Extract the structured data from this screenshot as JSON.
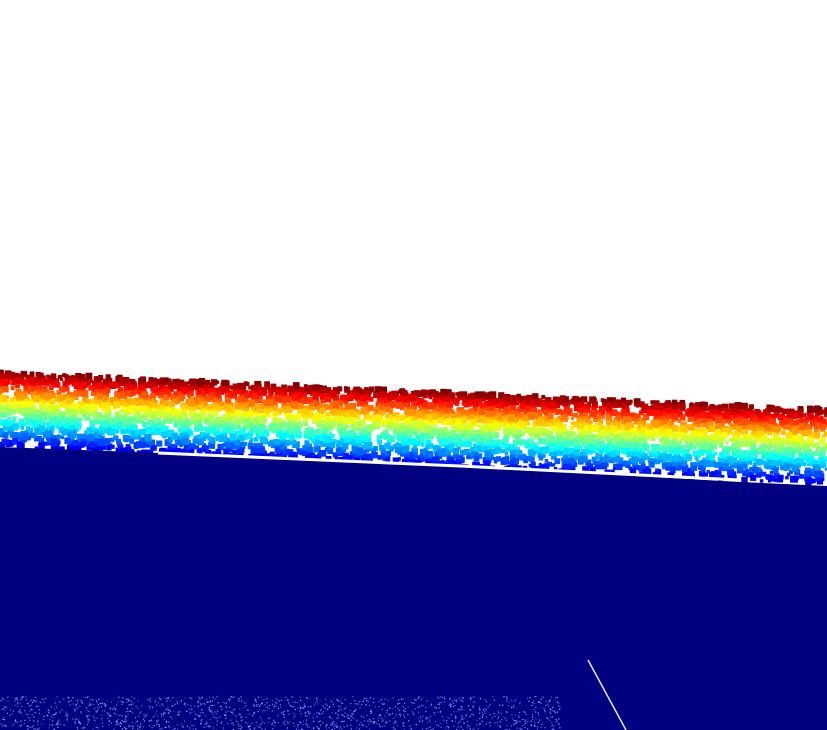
{
  "viewer": {
    "background_color": "#ffffff",
    "colormap": "jet",
    "colormap_stops": [
      "#00007f",
      "#0000ff",
      "#007fff",
      "#00ffff",
      "#7fff7f",
      "#ffff00",
      "#ff7f00",
      "#ff0000",
      "#7f0000"
    ],
    "ground_color": "#000080",
    "scene": "lidar-point-cloud-height-colored"
  }
}
